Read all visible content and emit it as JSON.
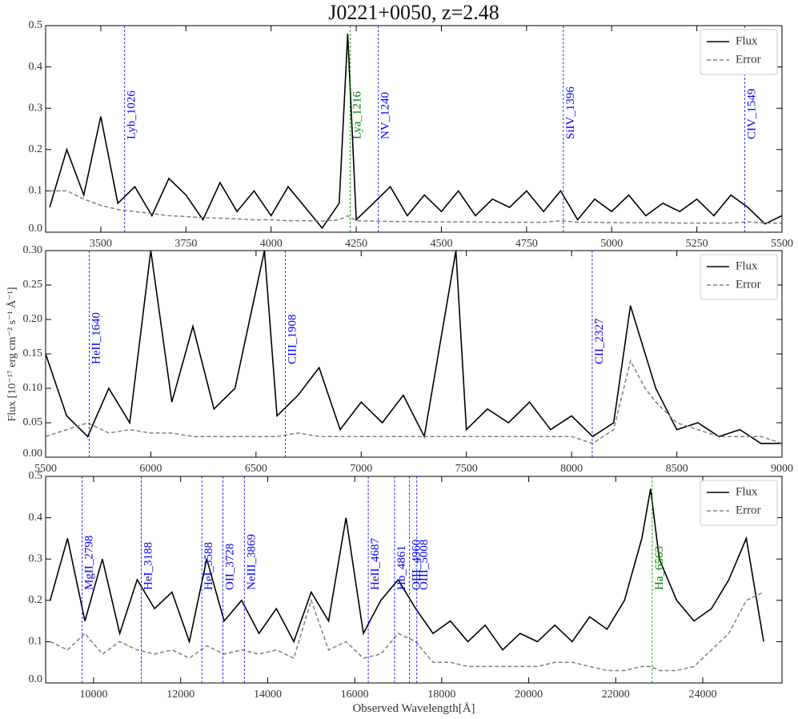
{
  "chart_data": [
    {
      "type": "line",
      "title": "J0221+0050, z=2.48",
      "x": [
        3350,
        3400,
        3450,
        3500,
        3550,
        3600,
        3650,
        3700,
        3750,
        3800,
        3850,
        3900,
        3950,
        4000,
        4050,
        4100,
        4150,
        4200,
        4225,
        4250,
        4300,
        4350,
        4400,
        4450,
        4500,
        4550,
        4600,
        4650,
        4700,
        4750,
        4800,
        4850,
        4900,
        4950,
        5000,
        5050,
        5100,
        5150,
        5200,
        5250,
        5300,
        5350,
        5400,
        5450,
        5500
      ],
      "series": [
        {
          "name": "Flux",
          "color": "#000000",
          "linestyle": "solid",
          "values": [
            0.06,
            0.2,
            0.09,
            0.28,
            0.07,
            0.11,
            0.04,
            0.13,
            0.09,
            0.03,
            0.12,
            0.05,
            0.1,
            0.04,
            0.11,
            0.06,
            0.01,
            0.07,
            0.48,
            0.03,
            0.07,
            0.11,
            0.04,
            0.09,
            0.05,
            0.1,
            0.04,
            0.08,
            0.06,
            0.1,
            0.05,
            0.1,
            0.03,
            0.08,
            0.05,
            0.09,
            0.04,
            0.07,
            0.05,
            0.08,
            0.04,
            0.09,
            0.06,
            0.02,
            0.04
          ]
        },
        {
          "name": "Error",
          "color": "#808080",
          "linestyle": "dashed",
          "values": [
            0.1,
            0.1,
            0.08,
            0.065,
            0.055,
            0.05,
            0.045,
            0.04,
            0.038,
            0.035,
            0.034,
            0.032,
            0.03,
            0.03,
            0.028,
            0.028,
            0.027,
            0.03,
            0.04,
            0.028,
            0.027,
            0.026,
            0.026,
            0.025,
            0.025,
            0.025,
            0.025,
            0.024,
            0.024,
            0.024,
            0.024,
            0.028,
            0.024,
            0.024,
            0.023,
            0.023,
            0.023,
            0.023,
            0.022,
            0.022,
            0.022,
            0.022,
            0.025,
            0.022,
            0.022
          ]
        }
      ],
      "xlim": [
        3338,
        5500
      ],
      "ylim": [
        0,
        0.5
      ],
      "xticks": [
        3500,
        3750,
        4000,
        4250,
        4500,
        4750,
        5000,
        5250,
        5500
      ],
      "yticks": [
        {
          "value": 0,
          "label": "0.0"
        },
        0.1,
        0.2,
        0.3,
        0.4,
        0.5
      ],
      "legend": "upper right",
      "lines": [
        {
          "label": "Lyb_1026",
          "x": 3570,
          "color": "#0000ff"
        },
        {
          "label": "Lya_1216",
          "x": 4232,
          "color": "#008000"
        },
        {
          "label": "NV_1240",
          "x": 4315,
          "color": "#0000ff"
        },
        {
          "label": "SiIV_1396",
          "x": 4858,
          "color": "#0000ff"
        },
        {
          "label": "CIV_1549",
          "x": 5391,
          "color": "#0000ff"
        }
      ]
    },
    {
      "type": "line",
      "ylabel": "Flux [10⁻¹⁷ erg cm⁻² s⁻¹ Å⁻¹]",
      "x": [
        5500,
        5600,
        5700,
        5800,
        5900,
        6000,
        6100,
        6200,
        6300,
        6400,
        6540,
        6600,
        6700,
        6800,
        6900,
        7000,
        7100,
        7200,
        7300,
        7450,
        7500,
        7600,
        7700,
        7800,
        7900,
        8000,
        8100,
        8200,
        8280,
        8350,
        8400,
        8500,
        8600,
        8700,
        8800,
        8900,
        9000
      ],
      "series": [
        {
          "name": "Flux",
          "color": "#000000",
          "linestyle": "solid",
          "values": [
            0.15,
            0.06,
            0.03,
            0.1,
            0.05,
            0.3,
            0.08,
            0.19,
            0.07,
            0.1,
            0.3,
            0.06,
            0.09,
            0.13,
            0.04,
            0.08,
            0.05,
            0.09,
            0.03,
            0.3,
            0.04,
            0.07,
            0.05,
            0.08,
            0.04,
            0.06,
            0.03,
            0.05,
            0.22,
            0.15,
            0.1,
            0.04,
            0.05,
            0.03,
            0.04,
            0.02,
            0.02
          ]
        },
        {
          "name": "Error",
          "color": "#808080",
          "linestyle": "dashed",
          "values": [
            0.03,
            0.04,
            0.05,
            0.035,
            0.04,
            0.035,
            0.035,
            0.03,
            0.03,
            0.03,
            0.03,
            0.03,
            0.035,
            0.03,
            0.03,
            0.03,
            0.03,
            0.03,
            0.03,
            0.03,
            0.03,
            0.03,
            0.03,
            0.03,
            0.03,
            0.03,
            0.02,
            0.04,
            0.14,
            0.1,
            0.08,
            0.05,
            0.04,
            0.03,
            0.03,
            0.03,
            0.02
          ]
        }
      ],
      "xlim": [
        5500,
        9000
      ],
      "ylim": [
        0,
        0.3
      ],
      "xticks": [
        5500,
        6000,
        6500,
        7000,
        7500,
        8000,
        8500,
        9000
      ],
      "yticks": [
        {
          "value": 0,
          "label": "0.00"
        },
        0.05,
        {
          "value": 0.1,
          "label": "0.10"
        },
        0.15,
        {
          "value": 0.2,
          "label": "0.20"
        },
        0.25,
        {
          "value": 0.3,
          "label": "0.30"
        }
      ],
      "legend": "upper right",
      "lines": [
        {
          "label": "HeII_1640",
          "x": 5707,
          "color": "#0000ff"
        },
        {
          "label": "CIII_1908",
          "x": 6640,
          "color": "#0000ff"
        },
        {
          "label": "CII_2327",
          "x": 8098,
          "color": "#0000ff"
        }
      ]
    },
    {
      "type": "line",
      "xlabel": "Observed Wavelength[Å]",
      "x": [
        9000,
        9400,
        9800,
        10200,
        10600,
        11000,
        11400,
        11800,
        12200,
        12600,
        13000,
        13400,
        13800,
        14200,
        14600,
        15000,
        15400,
        15800,
        16200,
        16600,
        17000,
        17400,
        17800,
        18200,
        18600,
        19000,
        19400,
        19800,
        20200,
        20600,
        21000,
        21400,
        21800,
        22200,
        22600,
        22800,
        23000,
        23400,
        23800,
        24200,
        24600,
        25000,
        25400
      ],
      "series": [
        {
          "name": "Flux",
          "color": "#000000",
          "linestyle": "solid",
          "values": [
            0.2,
            0.35,
            0.15,
            0.3,
            0.12,
            0.25,
            0.18,
            0.22,
            0.1,
            0.3,
            0.15,
            0.2,
            0.12,
            0.18,
            0.1,
            0.22,
            0.15,
            0.4,
            0.12,
            0.2,
            0.25,
            0.18,
            0.12,
            0.15,
            0.1,
            0.14,
            0.08,
            0.12,
            0.1,
            0.14,
            0.1,
            0.16,
            0.13,
            0.2,
            0.35,
            0.47,
            0.3,
            0.2,
            0.15,
            0.18,
            0.25,
            0.35,
            0.1
          ]
        },
        {
          "name": "Error",
          "color": "#808080",
          "linestyle": "dashed",
          "values": [
            0.1,
            0.08,
            0.12,
            0.07,
            0.1,
            0.08,
            0.07,
            0.08,
            0.06,
            0.09,
            0.07,
            0.08,
            0.07,
            0.08,
            0.06,
            0.2,
            0.08,
            0.1,
            0.06,
            0.07,
            0.12,
            0.1,
            0.05,
            0.05,
            0.04,
            0.04,
            0.04,
            0.04,
            0.04,
            0.05,
            0.05,
            0.04,
            0.03,
            0.03,
            0.04,
            0.04,
            0.03,
            0.03,
            0.04,
            0.08,
            0.12,
            0.2,
            0.22
          ]
        }
      ],
      "xlim": [
        8896,
        25821
      ],
      "ylim": [
        0,
        0.5
      ],
      "xticks": [
        10000,
        12000,
        14000,
        16000,
        18000,
        20000,
        22000,
        24000
      ],
      "yticks": [
        {
          "value": 0,
          "label": "0.0"
        },
        0.1,
        0.2,
        0.3,
        0.4,
        0.5
      ],
      "legend": "upper right",
      "lines": [
        {
          "label": "MgII_2798",
          "x": 9737,
          "color": "#0000ff"
        },
        {
          "label": "HeI_3188",
          "x": 11094,
          "color": "#0000ff"
        },
        {
          "label": "HeI_3588",
          "x": 12486,
          "color": "#0000ff"
        },
        {
          "label": "OII_3728",
          "x": 12973,
          "color": "#0000ff"
        },
        {
          "label": "NeIII_3869",
          "x": 13464,
          "color": "#0000ff"
        },
        {
          "label": "HeII_4687",
          "x": 16311,
          "color": "#0000ff"
        },
        {
          "label": "Hb_4861",
          "x": 16916,
          "color": "#0000ff"
        },
        {
          "label": "OIII_4960",
          "x": 17261,
          "color": "#0000ff"
        },
        {
          "label": "OIII_5008",
          "x": 17428,
          "color": "#0000ff"
        },
        {
          "label": "Ha_6563",
          "x": 22839,
          "color": "#008000"
        }
      ]
    }
  ]
}
